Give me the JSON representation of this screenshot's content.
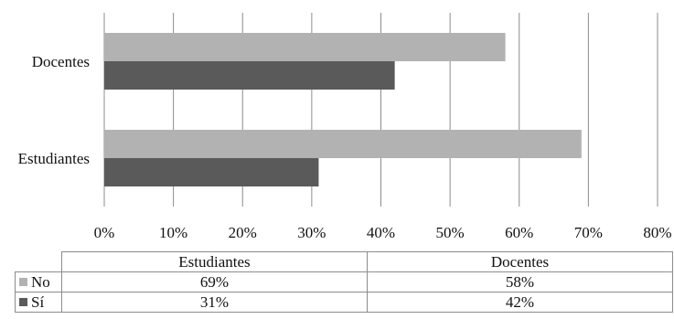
{
  "chart_data": {
    "type": "bar",
    "orientation": "horizontal",
    "categories": [
      "Docentes",
      "Estudiantes"
    ],
    "series": [
      {
        "name": "No",
        "color": "#b2b2b2",
        "values": [
          58,
          69
        ]
      },
      {
        "name": "Sí",
        "color": "#5a5a5a",
        "values": [
          42,
          31
        ]
      }
    ],
    "xlim": [
      0,
      80
    ],
    "x_ticks": [
      "0%",
      "10%",
      "20%",
      "30%",
      "40%",
      "50%",
      "60%",
      "70%",
      "80%"
    ],
    "grid": "vertical",
    "legend": "data table below chart"
  },
  "table": {
    "columns": [
      "Estudiantes",
      "Docentes"
    ],
    "rows": [
      {
        "series": "No",
        "color": "#b2b2b2",
        "cells": [
          "69%",
          "58%"
        ]
      },
      {
        "series": "Sí",
        "color": "#5a5a5a",
        "cells": [
          "31%",
          "42%"
        ]
      }
    ]
  }
}
